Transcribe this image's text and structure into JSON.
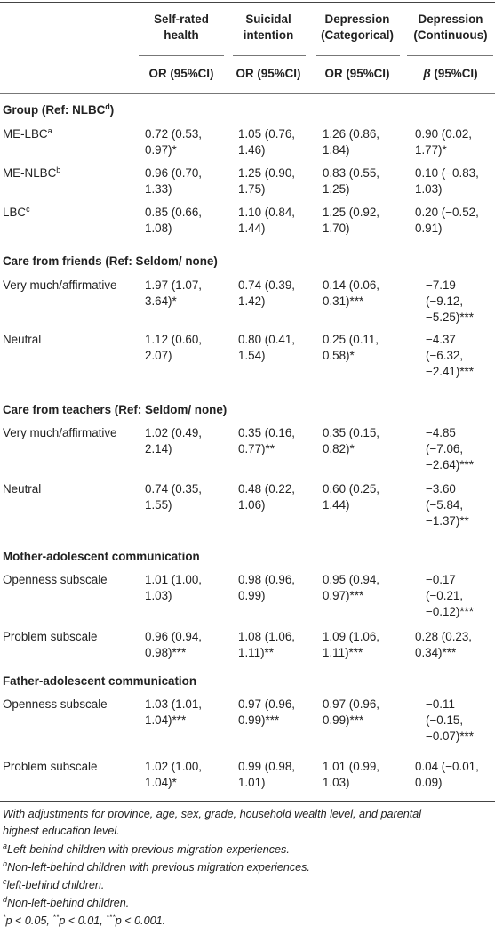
{
  "header": {
    "col1": [
      "Self-rated",
      "health"
    ],
    "col2": [
      "Suicidal",
      "intention"
    ],
    "col3": [
      "Depression",
      "(Categorical)"
    ],
    "col4": [
      "Depression",
      "(Continuous)"
    ],
    "stat1": "OR (95%CI)",
    "stat2": "OR (95%CI)",
    "stat3": "OR (95%CI)",
    "stat4_sym": "β",
    "stat4_rest": " (95%CI)"
  },
  "sections": [
    {
      "title": "Group (Ref: NLBC",
      "title_sup": "d",
      "title_end": ")",
      "rows": [
        {
          "label": "ME-LBC",
          "sup": "a",
          "cells": [
            [
              "0.72 (0.53,",
              "0.97)*"
            ],
            [
              "1.05 (0.76,",
              "1.46)"
            ],
            [
              "1.26 (0.86,",
              "1.84)"
            ],
            [
              "0.90 (0.02,",
              "1.77)*"
            ]
          ]
        },
        {
          "label": "ME-NLBC",
          "sup": "b",
          "cells": [
            [
              "0.96 (0.70,",
              "1.33)"
            ],
            [
              "1.25 (0.90,",
              "1.75)"
            ],
            [
              "0.83 (0.55,",
              "1.25)"
            ],
            [
              "0.10 (−0.83,",
              "1.03)"
            ]
          ]
        },
        {
          "label": "LBC",
          "sup": "c",
          "cells": [
            [
              "0.85 (0.66,",
              "1.08)"
            ],
            [
              "1.10 (0.84,",
              "1.44)"
            ],
            [
              "1.25 (0.92,",
              "1.70)"
            ],
            [
              "0.20 (−0.52,",
              "0.91)"
            ]
          ]
        }
      ]
    },
    {
      "title": "Care from friends (Ref: Seldom/ none)",
      "title_sup": "",
      "title_end": "",
      "rows": [
        {
          "label": "Very much/affirmative",
          "sup": "",
          "cells": [
            [
              "1.97 (1.07,",
              "3.64)*"
            ],
            [
              "0.74 (0.39,",
              "1.42)"
            ],
            [
              "0.14 (0.06,",
              "0.31)***"
            ],
            [
              "−7.19",
              "(−9.12,",
              "−5.25)***"
            ]
          ]
        },
        {
          "label": "Neutral",
          "sup": "",
          "cells": [
            [
              "1.12 (0.60,",
              "2.07)"
            ],
            [
              "0.80 (0.41,",
              "1.54)"
            ],
            [
              "0.25 (0.11,",
              "0.58)*"
            ],
            [
              "−4.37",
              "(−6.32,",
              "−2.41)***"
            ]
          ]
        }
      ]
    },
    {
      "title": "Care from teachers (Ref: Seldom/ none)",
      "title_sup": "",
      "title_end": "",
      "rows": [
        {
          "label": "Very much/affirmative",
          "sup": "",
          "cells": [
            [
              "1.02 (0.49,",
              "2.14)"
            ],
            [
              "0.35 (0.16,",
              "0.77)**"
            ],
            [
              "0.35 (0.15,",
              "0.82)*"
            ],
            [
              "−4.85",
              "(−7.06,",
              "−2.64)***"
            ]
          ]
        },
        {
          "label": "Neutral",
          "sup": "",
          "cells": [
            [
              "0.74 (0.35,",
              "1.55)"
            ],
            [
              "0.48 (0.22,",
              "1.06)"
            ],
            [
              "0.60 (0.25,",
              "1.44)"
            ],
            [
              "−3.60",
              "(−5.84,",
              "−1.37)**"
            ]
          ]
        }
      ]
    },
    {
      "title": "Mother-adolescent communication",
      "title_sup": "",
      "title_end": "",
      "rows": [
        {
          "label": "Openness subscale",
          "sup": "",
          "cells": [
            [
              "1.01 (1.00,",
              "1.03)"
            ],
            [
              "0.98 (0.96,",
              "0.99)"
            ],
            [
              "0.95 (0.94,",
              "0.97)***"
            ],
            [
              "−0.17",
              "(−0.21,",
              "−0.12)***"
            ]
          ]
        },
        {
          "label": "Problem subscale",
          "sup": "",
          "cells": [
            [
              "0.96 (0.94,",
              "0.98)***"
            ],
            [
              "1.08 (1.06,",
              "1.11)**"
            ],
            [
              "1.09 (1.06,",
              "1.11)***"
            ],
            [
              "0.28 (0.23,",
              "0.34)***"
            ]
          ]
        }
      ]
    },
    {
      "title": "Father-adolescent communication",
      "title_sup": "",
      "title_end": "",
      "rows": [
        {
          "label": "Openness subscale",
          "sup": "",
          "cells": [
            [
              "1.03 (1.01,",
              "1.04)***"
            ],
            [
              "0.97 (0.96,",
              "0.99)***"
            ],
            [
              "0.97 (0.96,",
              "0.99)***"
            ],
            [
              "−0.11",
              "(−0.15,",
              "−0.07)***"
            ]
          ]
        },
        {
          "label": "Problem subscale",
          "sup": "",
          "cells": [
            [
              "1.02 (1.00,",
              "1.04)*"
            ],
            [
              "0.99 (0.98,",
              "1.01)"
            ],
            [
              "1.01 (0.99,",
              "1.03)"
            ],
            [
              "0.04 (−0.01,",
              "0.09)"
            ]
          ]
        }
      ]
    }
  ],
  "footnotes": {
    "note1": "With adjustments for province, age, sex, grade, household wealth level, and parental",
    "note2": "highest education level.",
    "a_sup": "a",
    "a": "Left-behind children with previous migration experiences.",
    "b_sup": "b",
    "b": "Non-left-behind children with previous migration experiences.",
    "c_sup": "c",
    "c": "left-behind children.",
    "d_sup": "d",
    "d": "Non-left-behind children.",
    "sig": [
      {
        "sup": "*",
        "text": "p < 0.05, "
      },
      {
        "sup": "**",
        "text": "p < 0.01, "
      },
      {
        "sup": "***",
        "text": "p < 0.001."
      }
    ]
  }
}
